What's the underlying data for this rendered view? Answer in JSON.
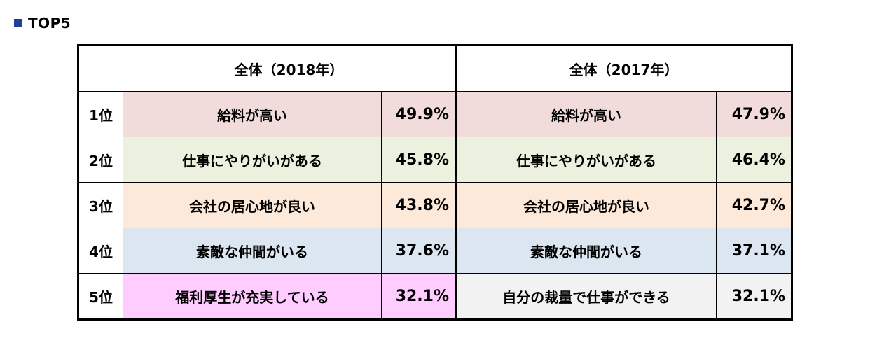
{
  "heading": {
    "title": "TOP5"
  },
  "chart_data": {
    "type": "table",
    "columns": [
      "全体（2018年）",
      "全体（2017年）"
    ],
    "rows": [
      {
        "rank": "1位",
        "item_2018": "給料が高い",
        "pct_2018": "49.9%",
        "item_2017": "給料が高い",
        "pct_2017": "47.9%"
      },
      {
        "rank": "2位",
        "item_2018": "仕事にやりがいがある",
        "pct_2018": "45.8%",
        "item_2017": "仕事にやりがいがある",
        "pct_2017": "46.4%"
      },
      {
        "rank": "3位",
        "item_2018": "会社の居心地が良い",
        "pct_2018": "43.8%",
        "item_2017": "会社の居心地が良い",
        "pct_2017": "42.7%"
      },
      {
        "rank": "4位",
        "item_2018": "素敵な仲間がいる",
        "pct_2018": "37.6%",
        "item_2017": "素敵な仲間がいる",
        "pct_2017": "37.1%"
      },
      {
        "rank": "5位",
        "item_2018": "福利厚生が充実している",
        "pct_2018": "32.1%",
        "item_2017": "自分の裁量で仕事ができる",
        "pct_2017": "32.1%"
      }
    ],
    "row_colors": [
      "#f2dcdb",
      "#ebf1de",
      "#fde9d9",
      "#dce6f1",
      "#ffccff"
    ],
    "row5_2017_color": "#f2f2f2",
    "heading_square_color": "#1f3f99"
  }
}
